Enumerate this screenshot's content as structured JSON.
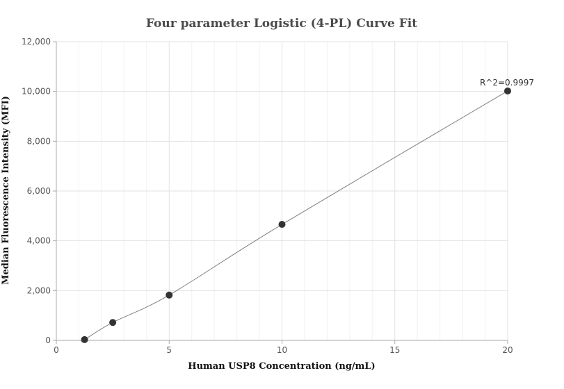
{
  "chart_data": {
    "type": "scatter",
    "title": "Four parameter Logistic (4-PL) Curve Fit",
    "xlabel": "Human USP8 Concentration (ng/mL)",
    "ylabel": "Median Fluorescence Intensity (MFI)",
    "xlim": [
      0,
      20
    ],
    "ylim": [
      0,
      12000
    ],
    "x_ticks": [
      0,
      5,
      10,
      15,
      20
    ],
    "x_tick_labels": [
      "0",
      "5",
      "10",
      "15",
      "20"
    ],
    "y_ticks": [
      0,
      2000,
      4000,
      6000,
      8000,
      10000,
      12000
    ],
    "y_tick_labels": [
      "0",
      "2,000",
      "4,000",
      "6,000",
      "8,000",
      "10,000",
      "12,000"
    ],
    "grid": true,
    "series": [
      {
        "points": [
          {
            "x": 1.25,
            "y": 30
          },
          {
            "x": 2.5,
            "y": 720
          },
          {
            "x": 5,
            "y": 1820
          },
          {
            "x": 10,
            "y": 4660
          },
          {
            "x": 20,
            "y": 10020
          }
        ],
        "marker_color": "#333333"
      }
    ],
    "fit_curve": {
      "model": "4-PL",
      "color": "#808080"
    },
    "annotation": "R^2=0.9997"
  }
}
